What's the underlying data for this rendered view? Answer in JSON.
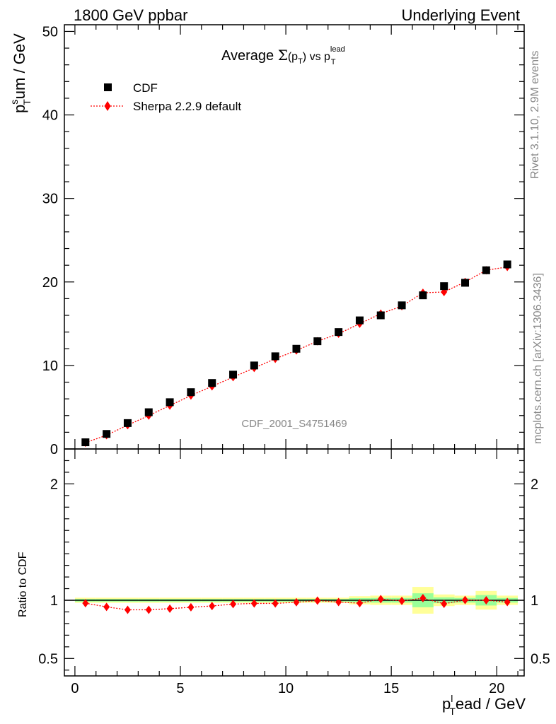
{
  "header": {
    "left": "1800 GeV ppbar",
    "right": "Underlying Event"
  },
  "side_labels": {
    "version": "Rivet 3.1.10,  2.9M events",
    "source": "mcplots.cern.ch [arXiv:1306.3436]"
  },
  "chart_data": {
    "type": "scatter",
    "title": {
      "pre": "Average ",
      "sigma": "Σ",
      "mid1": "(p",
      "sub_t": "T",
      "mid2": ")",
      "vs": " vs p",
      "sup": "lead",
      "sub2": "T"
    },
    "analysis_id": "CDF_2001_S4751469",
    "ylabel": {
      "base": "p",
      "sup": "s",
      "sub": "T",
      "rest": "um / GeV"
    },
    "xlabel": {
      "base": "p",
      "sup": "l",
      "sub": "T",
      "rest": "ead / GeV"
    },
    "ratio_ylabel": "Ratio to CDF",
    "xlim": [
      -0.5,
      21.3
    ],
    "ylim": [
      0,
      50.8
    ],
    "ratio_ylim": [
      0.35,
      2.3
    ],
    "x_ticks": [
      0,
      5,
      10,
      15,
      20
    ],
    "x_tick_labels": [
      "0",
      "5",
      "10",
      "15",
      "20"
    ],
    "y_ticks": [
      0,
      10,
      20,
      30,
      40,
      50
    ],
    "y_tick_labels": [
      "0",
      "10",
      "20",
      "30",
      "40",
      "50"
    ],
    "ratio_ticks": [
      0.5,
      1,
      2
    ],
    "ratio_tick_labels": [
      "0.5",
      "1",
      "2"
    ],
    "legend": [
      {
        "name": "CDF",
        "marker": "square",
        "color": "#000000"
      },
      {
        "name": "Sherpa 2.2.9 default",
        "marker": "diamond",
        "color": "#ff0000"
      }
    ],
    "x": [
      0.5,
      1.5,
      2.5,
      3.5,
      4.5,
      5.5,
      6.5,
      7.5,
      8.5,
      9.5,
      10.5,
      11.5,
      12.5,
      13.5,
      14.5,
      15.5,
      16.5,
      17.5,
      18.5,
      19.5,
      20.5
    ],
    "series": [
      {
        "name": "CDF",
        "values": [
          0.8,
          1.8,
          3.1,
          4.4,
          5.6,
          6.8,
          7.9,
          8.9,
          10.0,
          11.1,
          12.0,
          12.9,
          14.0,
          15.4,
          16.0,
          17.2,
          18.4,
          19.5,
          19.9,
          21.4,
          22.1
        ]
      },
      {
        "name": "Sherpa 2.2.9 default",
        "values": [
          0.75,
          1.65,
          2.85,
          4.0,
          5.2,
          6.4,
          7.5,
          8.6,
          9.7,
          10.8,
          11.8,
          12.9,
          13.8,
          15.0,
          16.2,
          17.1,
          18.7,
          18.8,
          20.0,
          21.4,
          21.8
        ]
      }
    ],
    "ratio": [
      0.975,
      0.943,
      0.918,
      0.918,
      0.928,
      0.94,
      0.951,
      0.967,
      0.973,
      0.973,
      0.983,
      0.997,
      0.985,
      0.975,
      1.01,
      0.995,
      1.018,
      0.97,
      1.002,
      1.0,
      0.985
    ],
    "band_green": [
      0.012,
      0.012,
      0.012,
      0.012,
      0.012,
      0.012,
      0.012,
      0.012,
      0.012,
      0.012,
      0.012,
      0.012,
      0.012,
      0.018,
      0.02,
      0.02,
      0.06,
      0.025,
      0.02,
      0.045,
      0.02
    ],
    "band_yellow": [
      0.022,
      0.022,
      0.022,
      0.022,
      0.022,
      0.022,
      0.022,
      0.022,
      0.022,
      0.022,
      0.022,
      0.022,
      0.022,
      0.035,
      0.04,
      0.04,
      0.115,
      0.05,
      0.04,
      0.08,
      0.04
    ],
    "colors": {
      "data": "#000000",
      "mc": "#ff0000",
      "band_inner": "#99ff99",
      "band_outer": "#ffff99"
    },
    "grid": false,
    "legend_position": "top-left"
  }
}
